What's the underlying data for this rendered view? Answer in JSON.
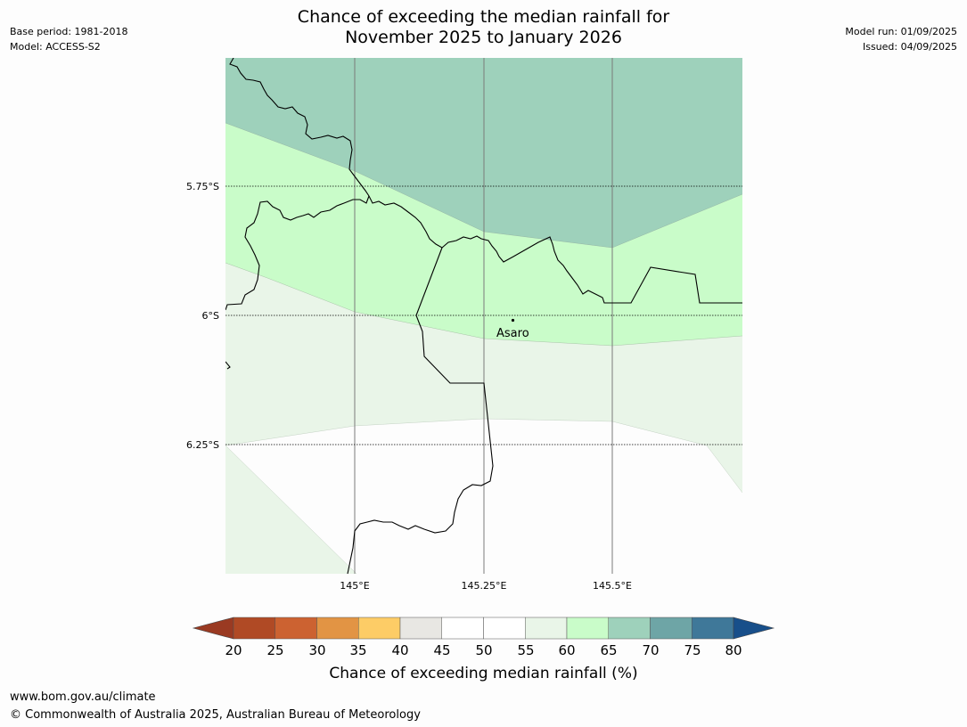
{
  "title_line1": "Chance of exceeding the median rainfall for",
  "title_line2": "November 2025 to January 2026",
  "base_period": "Base period: 1981-2018",
  "model": "Model: ACCESS-S2",
  "model_run": "Model run: 01/09/2025",
  "issued": "Issued: 04/09/2025",
  "map": {
    "lat_labels": [
      "5.75°S",
      "6°S",
      "6.25°S"
    ],
    "lon_labels": [
      "145°E",
      "145.25°E",
      "145.5°E"
    ],
    "place": "Asaro"
  },
  "colorbar": {
    "ticks": [
      "20",
      "25",
      "30",
      "35",
      "40",
      "45",
      "50",
      "55",
      "60",
      "65",
      "70",
      "75",
      "80"
    ],
    "colors": {
      "lt20": "#9a3a22",
      "20-25": "#b04a25",
      "25-30": "#cc6231",
      "30-35": "#e29444",
      "35-40": "#fdcc66",
      "40-45": "#e8e7e3",
      "45-50": "#ffffff",
      "50-55": "#ffffff",
      "55-60": "#e9f5e8",
      "60-65": "#c9fcc9",
      "65-70": "#9ed1bb",
      "70-75": "#6ea5a6",
      "75-80": "#3f7899",
      "gt80": "#184f8a"
    },
    "title": "Chance of exceeding median rainfall (%)"
  },
  "footer_url": "www.bom.gov.au/climate",
  "footer_copyright": "© Commonwealth of Australia 2025, Australian Bureau of Meteorology"
}
